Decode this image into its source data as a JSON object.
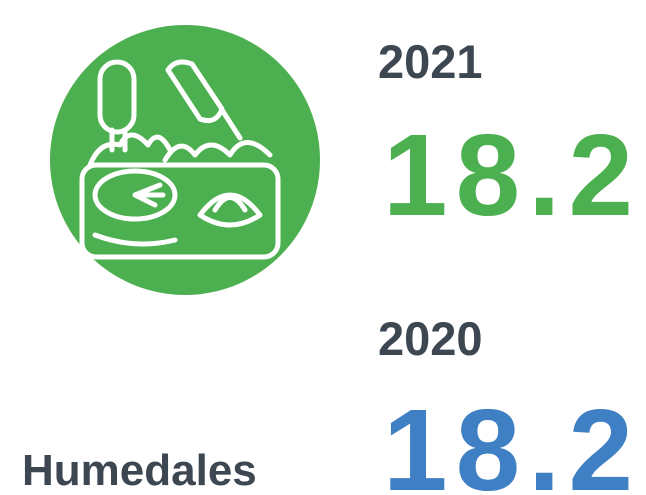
{
  "label": "Humedales",
  "stats": [
    {
      "year": "2021",
      "value": 18.2
    },
    {
      "year": "2020",
      "value": 18.2
    }
  ]
}
